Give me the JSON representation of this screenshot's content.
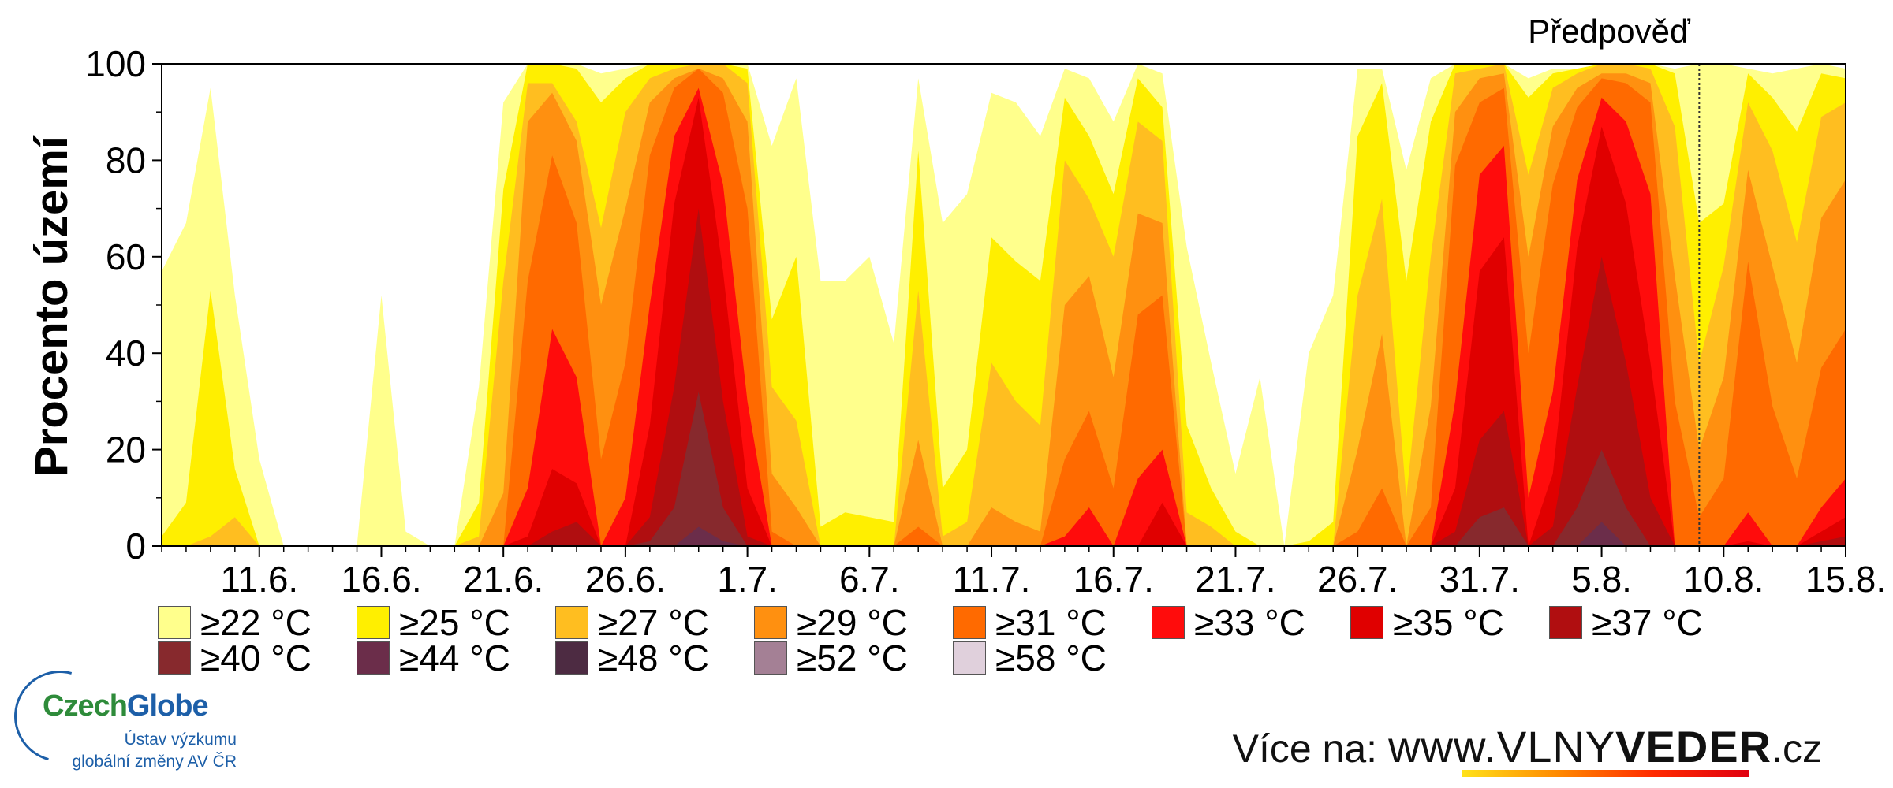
{
  "chart_data": {
    "type": "area",
    "chart_kind": "stacked-threshold-area",
    "ylabel": "Procento území",
    "xlabel": "",
    "title": "",
    "forecast_label": "Předpověď",
    "forecast_start_index": 63,
    "ylim": [
      0,
      100
    ],
    "yticks": [
      0,
      20,
      40,
      60,
      80,
      100
    ],
    "x_start": "7.6.",
    "x_end": "16.8.",
    "xticks": [
      {
        "index": 4,
        "label": "11.6."
      },
      {
        "index": 9,
        "label": "16.6."
      },
      {
        "index": 14,
        "label": "21.6."
      },
      {
        "index": 19,
        "label": "26.6."
      },
      {
        "index": 24,
        "label": "1.7."
      },
      {
        "index": 29,
        "label": "6.7."
      },
      {
        "index": 34,
        "label": "11.7."
      },
      {
        "index": 39,
        "label": "16.7."
      },
      {
        "index": 44,
        "label": "21.7."
      },
      {
        "index": 49,
        "label": "26.7."
      },
      {
        "index": 54,
        "label": "31.7."
      },
      {
        "index": 59,
        "label": "5.8."
      },
      {
        "index": 64,
        "label": "10.8."
      },
      {
        "index": 69,
        "label": "15.8."
      }
    ],
    "grid": false,
    "legend_position": "bottom",
    "series": [
      {
        "name": "≥22 °C",
        "color": "#ffff8c",
        "values": [
          57,
          67,
          95,
          52,
          18,
          0,
          0,
          0,
          0,
          52,
          3,
          0,
          0,
          33,
          92,
          100,
          100,
          100,
          98,
          99,
          100,
          100,
          100,
          100,
          100,
          83,
          97,
          55,
          55,
          60,
          42,
          97,
          67,
          73,
          94,
          92,
          85,
          99,
          97,
          88,
          100,
          98,
          62,
          38,
          15,
          35,
          0,
          40,
          52,
          99,
          99,
          78,
          97,
          100,
          100,
          100,
          97,
          99,
          99,
          100,
          100,
          100,
          99,
          100,
          100,
          99,
          98,
          99,
          100,
          99
        ]
      },
      {
        "name": "≥25 °C",
        "color": "#ffef00",
        "values": [
          2,
          9,
          53,
          16,
          0,
          0,
          0,
          0,
          0,
          0,
          0,
          0,
          0,
          9,
          74,
          100,
          100,
          99,
          92,
          97,
          100,
          100,
          100,
          100,
          99,
          47,
          60,
          4,
          7,
          6,
          5,
          82,
          12,
          20,
          64,
          59,
          55,
          93,
          85,
          73,
          97,
          91,
          25,
          12,
          3,
          0,
          0,
          1,
          5,
          85,
          96,
          55,
          88,
          100,
          100,
          100,
          93,
          98,
          99,
          100,
          100,
          100,
          98,
          67,
          71,
          98,
          93,
          86,
          98,
          97
        ]
      },
      {
        "name": "≥27 °C",
        "color": "#ffbe20",
        "values": [
          0,
          0,
          2,
          6,
          0,
          0,
          0,
          0,
          0,
          0,
          0,
          0,
          0,
          2,
          55,
          96,
          96,
          88,
          66,
          90,
          97,
          99,
          100,
          100,
          96,
          33,
          26,
          0,
          0,
          0,
          0,
          53,
          2,
          5,
          38,
          30,
          25,
          80,
          72,
          60,
          88,
          84,
          7,
          4,
          0,
          0,
          0,
          0,
          0,
          52,
          72,
          10,
          60,
          98,
          99,
          100,
          77,
          95,
          98,
          100,
          100,
          99,
          87,
          38,
          58,
          92,
          82,
          63,
          89,
          92
        ]
      },
      {
        "name": "≥29 °C",
        "color": "#ff9010",
        "values": [
          0,
          0,
          0,
          0,
          0,
          0,
          0,
          0,
          0,
          0,
          0,
          0,
          0,
          0,
          11,
          88,
          94,
          84,
          50,
          70,
          92,
          97,
          99,
          97,
          88,
          15,
          8,
          0,
          0,
          0,
          0,
          22,
          0,
          0,
          8,
          5,
          3,
          50,
          56,
          35,
          69,
          67,
          0,
          0,
          0,
          0,
          0,
          0,
          0,
          20,
          44,
          0,
          29,
          90,
          97,
          98,
          60,
          87,
          95,
          98,
          98,
          96,
          56,
          20,
          35,
          78,
          58,
          38,
          68,
          76
        ]
      },
      {
        "name": "≥31 °C",
        "color": "#ff6a00",
        "values": [
          0,
          0,
          0,
          0,
          0,
          0,
          0,
          0,
          0,
          0,
          0,
          0,
          0,
          0,
          0,
          55,
          81,
          67,
          18,
          38,
          81,
          95,
          99,
          94,
          70,
          3,
          0,
          0,
          0,
          0,
          0,
          4,
          0,
          0,
          0,
          0,
          0,
          18,
          28,
          12,
          48,
          52,
          0,
          0,
          0,
          0,
          0,
          0,
          0,
          3,
          12,
          0,
          8,
          79,
          92,
          95,
          40,
          75,
          91,
          97,
          96,
          92,
          30,
          6,
          14,
          59,
          29,
          14,
          37,
          45
        ]
      },
      {
        "name": "≥33 °C",
        "color": "#ff0c0c",
        "values": [
          0,
          0,
          0,
          0,
          0,
          0,
          0,
          0,
          0,
          0,
          0,
          0,
          0,
          0,
          0,
          12,
          45,
          35,
          0,
          10,
          50,
          85,
          95,
          75,
          30,
          0,
          0,
          0,
          0,
          0,
          0,
          0,
          0,
          0,
          0,
          0,
          0,
          2,
          8,
          0,
          14,
          20,
          0,
          0,
          0,
          0,
          0,
          0,
          0,
          0,
          0,
          0,
          0,
          30,
          77,
          83,
          10,
          32,
          76,
          93,
          88,
          73,
          0,
          0,
          0,
          7,
          0,
          0,
          8,
          14
        ]
      },
      {
        "name": "≥35 °C",
        "color": "#e00000",
        "values": [
          0,
          0,
          0,
          0,
          0,
          0,
          0,
          0,
          0,
          0,
          0,
          0,
          0,
          0,
          0,
          2,
          16,
          13,
          0,
          0,
          25,
          71,
          93,
          57,
          12,
          0,
          0,
          0,
          0,
          0,
          0,
          0,
          0,
          0,
          0,
          0,
          0,
          0,
          0,
          0,
          0,
          9,
          0,
          0,
          0,
          0,
          0,
          0,
          0,
          0,
          0,
          0,
          0,
          12,
          57,
          64,
          0,
          15,
          62,
          87,
          71,
          38,
          0,
          0,
          0,
          1,
          0,
          0,
          3,
          6
        ]
      },
      {
        "name": "≥37 °C",
        "color": "#b00e10",
        "values": [
          0,
          0,
          0,
          0,
          0,
          0,
          0,
          0,
          0,
          0,
          0,
          0,
          0,
          0,
          0,
          0,
          3,
          5,
          0,
          0,
          6,
          33,
          70,
          30,
          2,
          0,
          0,
          0,
          0,
          0,
          0,
          0,
          0,
          0,
          0,
          0,
          0,
          0,
          0,
          0,
          0,
          0,
          0,
          0,
          0,
          0,
          0,
          0,
          0,
          0,
          0,
          0,
          0,
          3,
          22,
          28,
          0,
          4,
          33,
          60,
          38,
          10,
          0,
          0,
          0,
          0,
          0,
          0,
          1,
          2
        ]
      },
      {
        "name": "≥40 °C",
        "color": "#87292d",
        "values": [
          0,
          0,
          0,
          0,
          0,
          0,
          0,
          0,
          0,
          0,
          0,
          0,
          0,
          0,
          0,
          0,
          0,
          0,
          0,
          0,
          1,
          8,
          32,
          8,
          0,
          0,
          0,
          0,
          0,
          0,
          0,
          0,
          0,
          0,
          0,
          0,
          0,
          0,
          0,
          0,
          0,
          0,
          0,
          0,
          0,
          0,
          0,
          0,
          0,
          0,
          0,
          0,
          0,
          0,
          6,
          8,
          0,
          0,
          8,
          20,
          8,
          0,
          0,
          0,
          0,
          0,
          0,
          0,
          0,
          0
        ]
      },
      {
        "name": "≥44 °C",
        "color": "#6b2d4a",
        "values": [
          0,
          0,
          0,
          0,
          0,
          0,
          0,
          0,
          0,
          0,
          0,
          0,
          0,
          0,
          0,
          0,
          0,
          0,
          0,
          0,
          0,
          0,
          4,
          1,
          0,
          0,
          0,
          0,
          0,
          0,
          0,
          0,
          0,
          0,
          0,
          0,
          0,
          0,
          0,
          0,
          0,
          0,
          0,
          0,
          0,
          0,
          0,
          0,
          0,
          0,
          0,
          0,
          0,
          0,
          0,
          0,
          0,
          0,
          0,
          5,
          0,
          0,
          0,
          0,
          0,
          0,
          0,
          0,
          0,
          0
        ]
      },
      {
        "name": "≥48 °C",
        "color": "#4d2b42",
        "values": [
          0,
          0,
          0,
          0,
          0,
          0,
          0,
          0,
          0,
          0,
          0,
          0,
          0,
          0,
          0,
          0,
          0,
          0,
          0,
          0,
          0,
          0,
          0,
          0,
          0,
          0,
          0,
          0,
          0,
          0,
          0,
          0,
          0,
          0,
          0,
          0,
          0,
          0,
          0,
          0,
          0,
          0,
          0,
          0,
          0,
          0,
          0,
          0,
          0,
          0,
          0,
          0,
          0,
          0,
          0,
          0,
          0,
          0,
          0,
          0,
          0,
          0,
          0,
          0,
          0,
          0,
          0,
          0,
          0,
          0
        ]
      },
      {
        "name": "≥52 °C",
        "color": "#a48095",
        "values": [
          0,
          0,
          0,
          0,
          0,
          0,
          0,
          0,
          0,
          0,
          0,
          0,
          0,
          0,
          0,
          0,
          0,
          0,
          0,
          0,
          0,
          0,
          0,
          0,
          0,
          0,
          0,
          0,
          0,
          0,
          0,
          0,
          0,
          0,
          0,
          0,
          0,
          0,
          0,
          0,
          0,
          0,
          0,
          0,
          0,
          0,
          0,
          0,
          0,
          0,
          0,
          0,
          0,
          0,
          0,
          0,
          0,
          0,
          0,
          0,
          0,
          0,
          0,
          0,
          0,
          0,
          0,
          0,
          0,
          0
        ]
      },
      {
        "name": "≥58 °C",
        "color": "#e0d0dc",
        "values": [
          0,
          0,
          0,
          0,
          0,
          0,
          0,
          0,
          0,
          0,
          0,
          0,
          0,
          0,
          0,
          0,
          0,
          0,
          0,
          0,
          0,
          0,
          0,
          0,
          0,
          0,
          0,
          0,
          0,
          0,
          0,
          0,
          0,
          0,
          0,
          0,
          0,
          0,
          0,
          0,
          0,
          0,
          0,
          0,
          0,
          0,
          0,
          0,
          0,
          0,
          0,
          0,
          0,
          0,
          0,
          0,
          0,
          0,
          0,
          0,
          0,
          0,
          0,
          0,
          0,
          0,
          0,
          0,
          0,
          0
        ]
      }
    ]
  },
  "logo": {
    "name_part1": "Czech",
    "name_part2": "Globe",
    "subtitle_line1": "Ústav výzkumu",
    "subtitle_line2": "globální změny AV ČR"
  },
  "footer": {
    "prefix": "Více na:",
    "site_a": "www.VLNY",
    "site_b": "VEDER",
    "site_c": ".cz"
  }
}
